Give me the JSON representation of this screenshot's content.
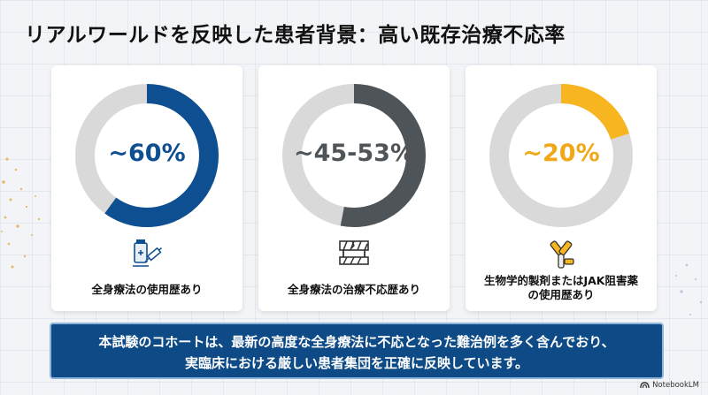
{
  "title": "リアルワールドを反映した患者背景：高い既存治療不応率",
  "colors": {
    "ring_bg": "#d9d9d9",
    "blue": "#0e4f91",
    "gray": "#4f5459",
    "yellow": "#f7b520",
    "banner_bg": "#0d4a86"
  },
  "chart_data": [
    {
      "type": "pie",
      "label": "~60%",
      "value": 60,
      "caption": "全身療法の使用歴あり",
      "color": "#0e4f91",
      "icon": "syringe-vial-icon"
    },
    {
      "type": "pie",
      "label": "~45-53%",
      "value": 53,
      "caption": "全身療法の治療不応歴あり",
      "color": "#4f5459",
      "icon": "broken-barrier-icon"
    },
    {
      "type": "pie",
      "label": "~20%",
      "value": 20,
      "caption": [
        "生物学的製剤またはJAK阻害薬",
        "の使用歴あり"
      ],
      "color": "#f7b520",
      "icon": "antibody-icon"
    }
  ],
  "banner": {
    "line1": "本試験のコホートは、最新の高度な全身療法に不応となった難治例を多く含んでおり、",
    "line2": "実臨床における厳しい患者集団を正確に反映しています。"
  },
  "brand": "NotebookLM"
}
